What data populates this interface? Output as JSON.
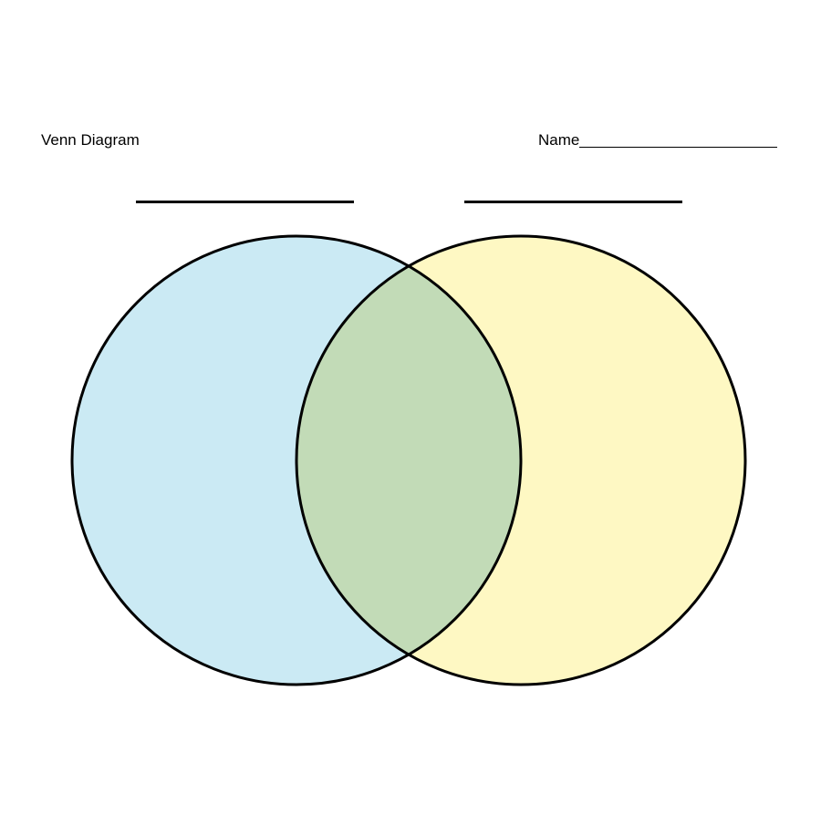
{
  "header": {
    "title": "Venn Diagram",
    "name_label": "Name"
  },
  "diagram": {
    "type": "venn",
    "sets": 2,
    "colors": {
      "left_circle": "#cbeaf4",
      "right_circle": "#fef8c3",
      "overlap": "#c2dbb7",
      "outline": "#000000"
    }
  }
}
